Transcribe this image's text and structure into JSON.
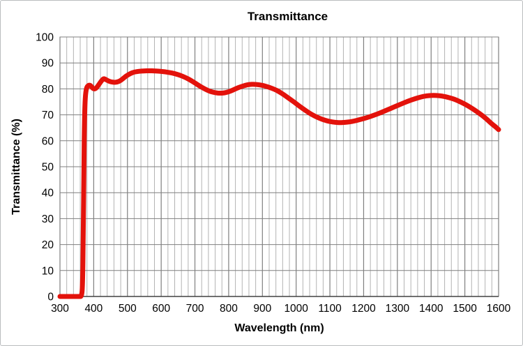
{
  "chart_data": {
    "type": "line",
    "title": "Transmittance",
    "xlabel": "Wavelength (nm)",
    "ylabel": "Transmittance (%)",
    "x_range": [
      300,
      1600
    ],
    "y_range": [
      0,
      100
    ],
    "x_major_ticks": [
      300,
      400,
      500,
      600,
      700,
      800,
      900,
      1000,
      1100,
      1200,
      1300,
      1400,
      1500,
      1600
    ],
    "x_minor_step": 20,
    "y_major_ticks": [
      0,
      10,
      20,
      30,
      40,
      50,
      60,
      70,
      80,
      90,
      100
    ],
    "grid": "on",
    "legend": "none",
    "colors": {
      "series": "#e3120b",
      "grid_major": "#7f7f7f",
      "grid_minor": "#b3b3b3",
      "axis_line": "#404040",
      "frame_border": "#b9bcbe",
      "background": "#ffffff"
    },
    "series": [
      {
        "name": "Transmittance",
        "color": "#e3120b",
        "points": [
          [
            300,
            0
          ],
          [
            310,
            0
          ],
          [
            320,
            0
          ],
          [
            330,
            0
          ],
          [
            340,
            0
          ],
          [
            350,
            0
          ],
          [
            358,
            0
          ],
          [
            364,
            0
          ],
          [
            367,
            4
          ],
          [
            369,
            22
          ],
          [
            371,
            52
          ],
          [
            373,
            70
          ],
          [
            375,
            77
          ],
          [
            378,
            80
          ],
          [
            381,
            81.0
          ],
          [
            386,
            81.5
          ],
          [
            391,
            81.3
          ],
          [
            397,
            80.2
          ],
          [
            403,
            79.9
          ],
          [
            409,
            80.5
          ],
          [
            416,
            81.8
          ],
          [
            424,
            83.3
          ],
          [
            430,
            84.0
          ],
          [
            436,
            83.6
          ],
          [
            444,
            83.0
          ],
          [
            452,
            82.7
          ],
          [
            460,
            82.5
          ],
          [
            470,
            82.6
          ],
          [
            480,
            83.2
          ],
          [
            490,
            84.3
          ],
          [
            500,
            85.3
          ],
          [
            510,
            86.0
          ],
          [
            520,
            86.5
          ],
          [
            535,
            86.8
          ],
          [
            550,
            86.9
          ],
          [
            565,
            87.0
          ],
          [
            580,
            86.9
          ],
          [
            595,
            86.8
          ],
          [
            610,
            86.6
          ],
          [
            625,
            86.3
          ],
          [
            640,
            85.9
          ],
          [
            655,
            85.3
          ],
          [
            670,
            84.5
          ],
          [
            685,
            83.5
          ],
          [
            700,
            82.3
          ],
          [
            715,
            81.0
          ],
          [
            730,
            79.9
          ],
          [
            745,
            79.0
          ],
          [
            760,
            78.5
          ],
          [
            775,
            78.3
          ],
          [
            790,
            78.5
          ],
          [
            805,
            79.1
          ],
          [
            820,
            80.0
          ],
          [
            835,
            80.8
          ],
          [
            850,
            81.4
          ],
          [
            862,
            81.7
          ],
          [
            875,
            81.8
          ],
          [
            890,
            81.6
          ],
          [
            905,
            81.2
          ],
          [
            920,
            80.6
          ],
          [
            935,
            79.9
          ],
          [
            950,
            78.9
          ],
          [
            965,
            77.6
          ],
          [
            980,
            76.2
          ],
          [
            995,
            74.8
          ],
          [
            1010,
            73.3
          ],
          [
            1025,
            71.9
          ],
          [
            1040,
            70.6
          ],
          [
            1055,
            69.5
          ],
          [
            1070,
            68.6
          ],
          [
            1085,
            67.9
          ],
          [
            1100,
            67.4
          ],
          [
            1115,
            67.1
          ],
          [
            1130,
            67.0
          ],
          [
            1145,
            67.1
          ],
          [
            1160,
            67.3
          ],
          [
            1175,
            67.7
          ],
          [
            1190,
            68.2
          ],
          [
            1210,
            68.9
          ],
          [
            1230,
            69.8
          ],
          [
            1250,
            70.8
          ],
          [
            1270,
            71.9
          ],
          [
            1290,
            73.0
          ],
          [
            1310,
            74.1
          ],
          [
            1330,
            75.2
          ],
          [
            1350,
            76.1
          ],
          [
            1370,
            76.9
          ],
          [
            1385,
            77.3
          ],
          [
            1400,
            77.5
          ],
          [
            1415,
            77.5
          ],
          [
            1430,
            77.3
          ],
          [
            1445,
            76.9
          ],
          [
            1460,
            76.4
          ],
          [
            1475,
            75.7
          ],
          [
            1490,
            74.8
          ],
          [
            1505,
            73.8
          ],
          [
            1520,
            72.6
          ],
          [
            1535,
            71.3
          ],
          [
            1550,
            69.9
          ],
          [
            1565,
            68.3
          ],
          [
            1580,
            66.5
          ],
          [
            1590,
            65.5
          ],
          [
            1600,
            64.3
          ]
        ]
      }
    ]
  }
}
